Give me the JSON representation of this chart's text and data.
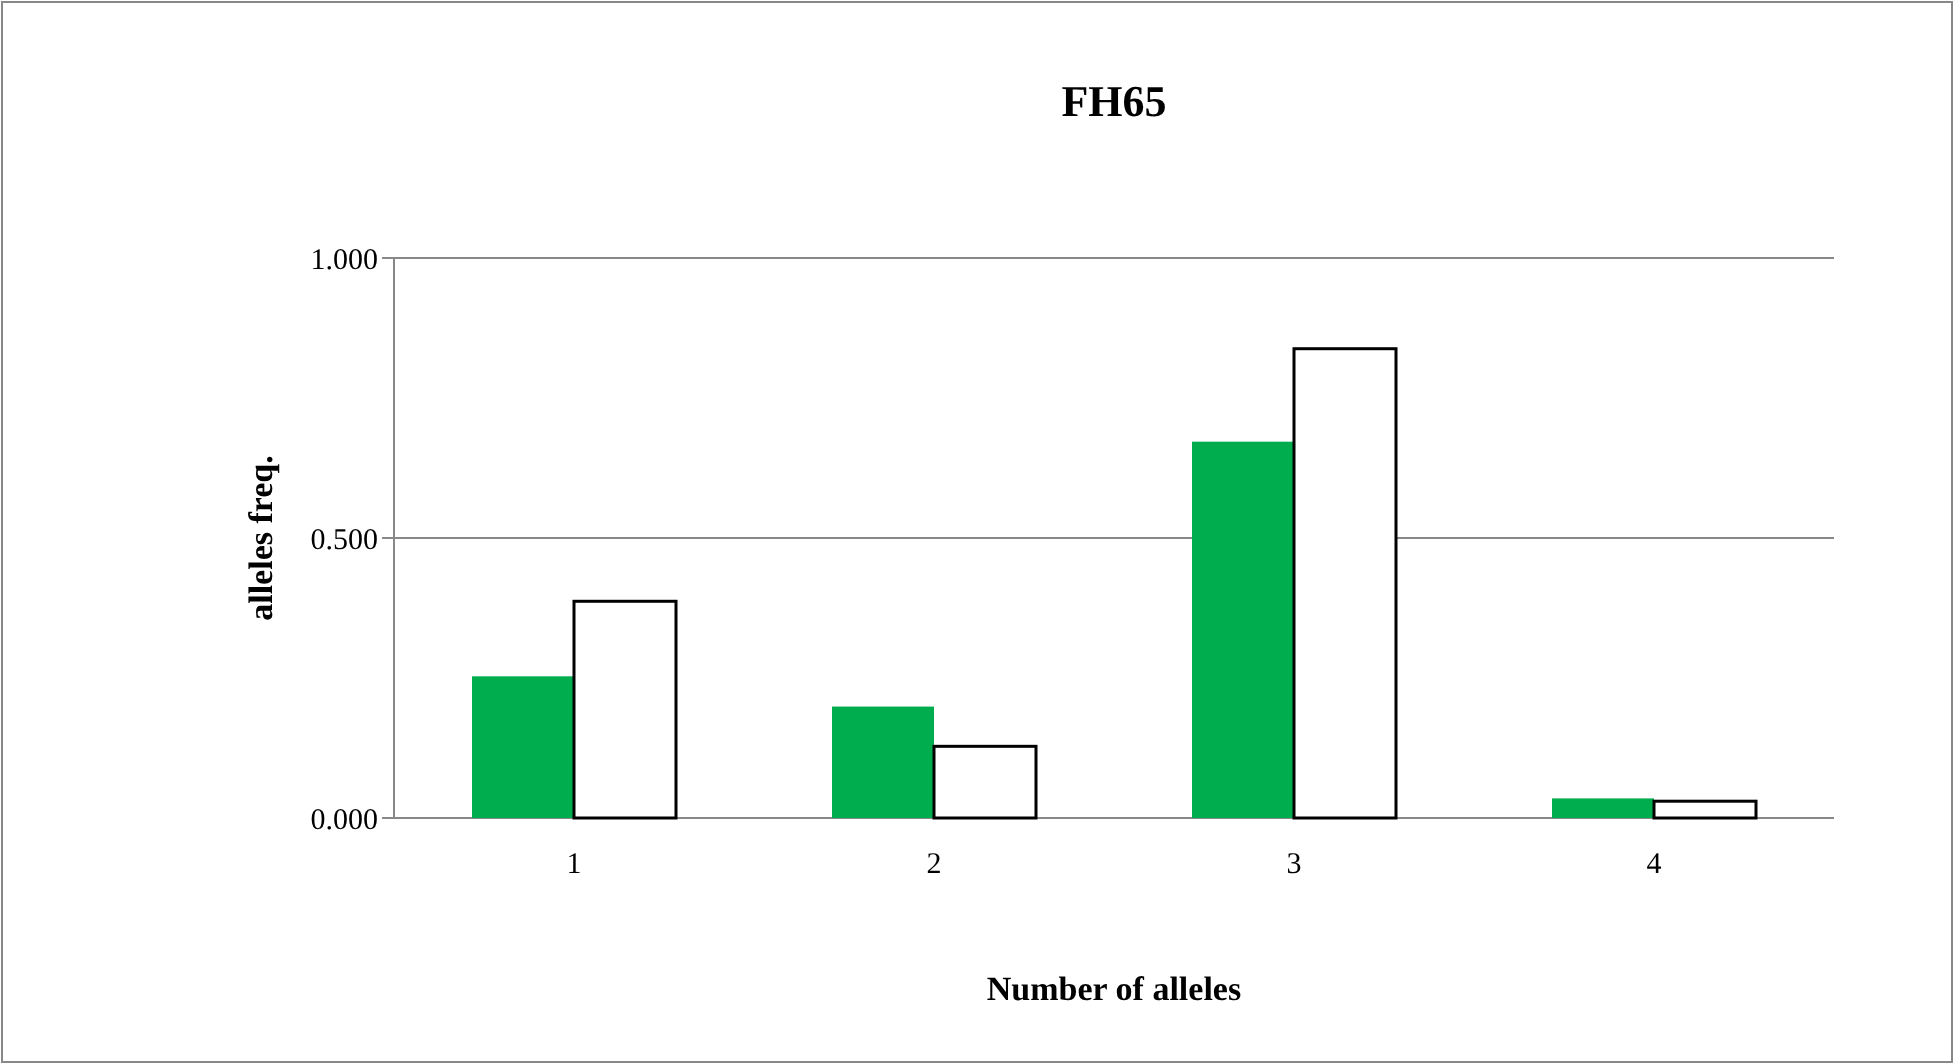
{
  "chart_data": {
    "type": "bar",
    "title": "FH65",
    "xlabel": "Number of alleles",
    "ylabel": "alleles freq.",
    "categories": [
      "1",
      "2",
      "3",
      "4"
    ],
    "series": [
      {
        "color": "#00ad4e",
        "values": [
          0.253,
          0.199,
          0.672,
          0.035
        ]
      },
      {
        "color": "#ffffff",
        "values": [
          0.387,
          0.128,
          0.838,
          0.03
        ]
      }
    ],
    "ylim": [
      0,
      1
    ],
    "yticks": [
      {
        "value": 0,
        "label": "0.000"
      },
      {
        "value": 0.5,
        "label": "0.500"
      },
      {
        "value": 1,
        "label": "1.000"
      }
    ],
    "grid": "y"
  }
}
